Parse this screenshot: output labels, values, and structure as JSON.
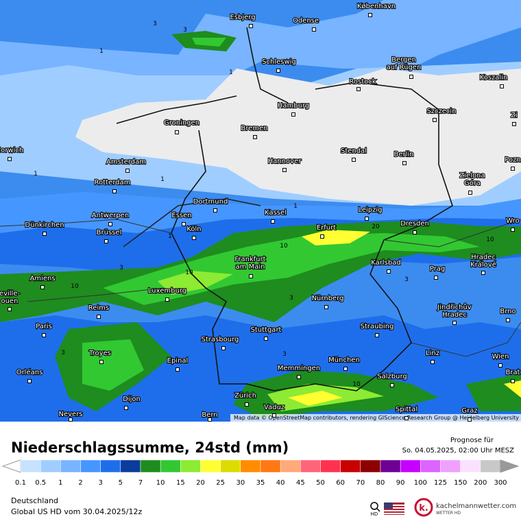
{
  "map": {
    "cities": [
      {
        "lines": [
          "Esbjerg"
        ]
      },
      {
        "lines": [
          "Odense"
        ]
      },
      {
        "lines": [
          "København"
        ]
      },
      {
        "lines": [
          "Schleswig"
        ]
      },
      {
        "lines": [
          "Bergen",
          "auf Rügen"
        ]
      },
      {
        "lines": [
          "Rostock"
        ]
      },
      {
        "lines": [
          "Koszalin"
        ]
      },
      {
        "lines": [
          "Hamburg"
        ]
      },
      {
        "lines": [
          "Szczecin"
        ]
      },
      {
        "lines": [
          "Groningen"
        ]
      },
      {
        "lines": [
          "Bremen"
        ]
      },
      {
        "lines": [
          "Norwich"
        ]
      },
      {
        "lines": [
          "Stendal"
        ]
      },
      {
        "lines": [
          "Berlin"
        ]
      },
      {
        "lines": [
          "Amsterdam"
        ]
      },
      {
        "lines": [
          "Hannover"
        ]
      },
      {
        "lines": [
          "Pozn"
        ]
      },
      {
        "lines": [
          "Zielona",
          "Góra"
        ]
      },
      {
        "lines": [
          "Rotterdam"
        ]
      },
      {
        "lines": [
          "Dortmund"
        ]
      },
      {
        "lines": [
          "Antwerpen"
        ]
      },
      {
        "lines": [
          "Essen"
        ]
      },
      {
        "lines": [
          "Kassel"
        ]
      },
      {
        "lines": [
          "Leipzig"
        ]
      },
      {
        "lines": [
          "Dünkirchen"
        ]
      },
      {
        "lines": [
          "Köln"
        ]
      },
      {
        "lines": [
          "Brüssel"
        ]
      },
      {
        "lines": [
          "Dresden"
        ]
      },
      {
        "lines": [
          "Wro"
        ]
      },
      {
        "lines": [
          "Erfurt"
        ]
      },
      {
        "lines": [
          "Frankfurt",
          "am Main"
        ]
      },
      {
        "lines": [
          "Karlsbad"
        ]
      },
      {
        "lines": [
          "Hradec",
          "Králové"
        ]
      },
      {
        "lines": [
          "Amiens"
        ]
      },
      {
        "lines": [
          "Prag"
        ]
      },
      {
        "lines": [
          "Luxemburg"
        ]
      },
      {
        "lines": [
          "eville-",
          "ouen"
        ]
      },
      {
        "lines": [
          "Nürnberg"
        ]
      },
      {
        "lines": [
          "Jindřichův",
          "Hradec"
        ]
      },
      {
        "lines": [
          "Reims"
        ]
      },
      {
        "lines": [
          "Brno"
        ]
      },
      {
        "lines": [
          "Paris"
        ]
      },
      {
        "lines": [
          "Straubing"
        ]
      },
      {
        "lines": [
          "Stuttgart"
        ]
      },
      {
        "lines": [
          "Strasbourg"
        ]
      },
      {
        "lines": [
          "Troyes"
        ]
      },
      {
        "lines": [
          "Linz"
        ]
      },
      {
        "lines": [
          "Wien"
        ]
      },
      {
        "lines": [
          "Epinal"
        ]
      },
      {
        "lines": [
          "München"
        ]
      },
      {
        "lines": [
          "Memmingen"
        ]
      },
      {
        "lines": [
          "Orléans"
        ]
      },
      {
        "lines": [
          "Salzburg"
        ]
      },
      {
        "lines": [
          "Brat"
        ]
      },
      {
        "lines": [
          "Dijon"
        ]
      },
      {
        "lines": [
          "Zürich"
        ]
      },
      {
        "lines": [
          "Vaduz"
        ]
      },
      {
        "lines": [
          "Nevers"
        ]
      },
      {
        "lines": [
          "Bern"
        ]
      },
      {
        "lines": [
          "Spittal"
        ]
      },
      {
        "lines": [
          "Graz"
        ]
      },
      {
        "lines": [
          "Zi"
        ]
      }
    ],
    "contour_labels": [
      "3",
      "3",
      "1",
      "1",
      "1",
      "1",
      "10",
      "20",
      "10",
      "10",
      "10",
      "3",
      "3",
      "3",
      "3",
      "3",
      "10",
      "1",
      "1"
    ],
    "attribution": "Map data © OpenStreetMap contributors, rendering GIScience Research Group @ Heidelberg University",
    "title": "Niederschlagssumme, 24std (mm)",
    "forecast_label": "Prognose für",
    "forecast_time": "So. 04.05.2025, 02:00 Uhr MESZ",
    "region": "Deutschland",
    "model": "Global US HD vom  30.04.2025/12z",
    "zoom_label": "HD",
    "brand": "kachelmannwetter.com",
    "brand_sub": "WETTER HD",
    "legend": {
      "labels": [
        "0.1",
        "0.5",
        "1",
        "2",
        "3",
        "5",
        "7",
        "10",
        "15",
        "20",
        "25",
        "30",
        "35",
        "40",
        "45",
        "50",
        "60",
        "70",
        "80",
        "90",
        "100",
        "125",
        "150",
        "200",
        "300"
      ],
      "colors": [
        "#c6e2ff",
        "#a0cdff",
        "#78b4ff",
        "#4696ff",
        "#1e6eeb",
        "#0a3c9b",
        "#1e8c1e",
        "#32c832",
        "#8ceb32",
        "#ffff32",
        "#dcdc00",
        "#ff8c00",
        "#ff7814",
        "#ffaa78",
        "#ff6478",
        "#ff3250",
        "#c80000",
        "#8c0000",
        "#6e0096",
        "#c800ff",
        "#dc64ff",
        "#f0a0ff",
        "#fae1ff",
        "#c8c8c8"
      ]
    }
  }
}
